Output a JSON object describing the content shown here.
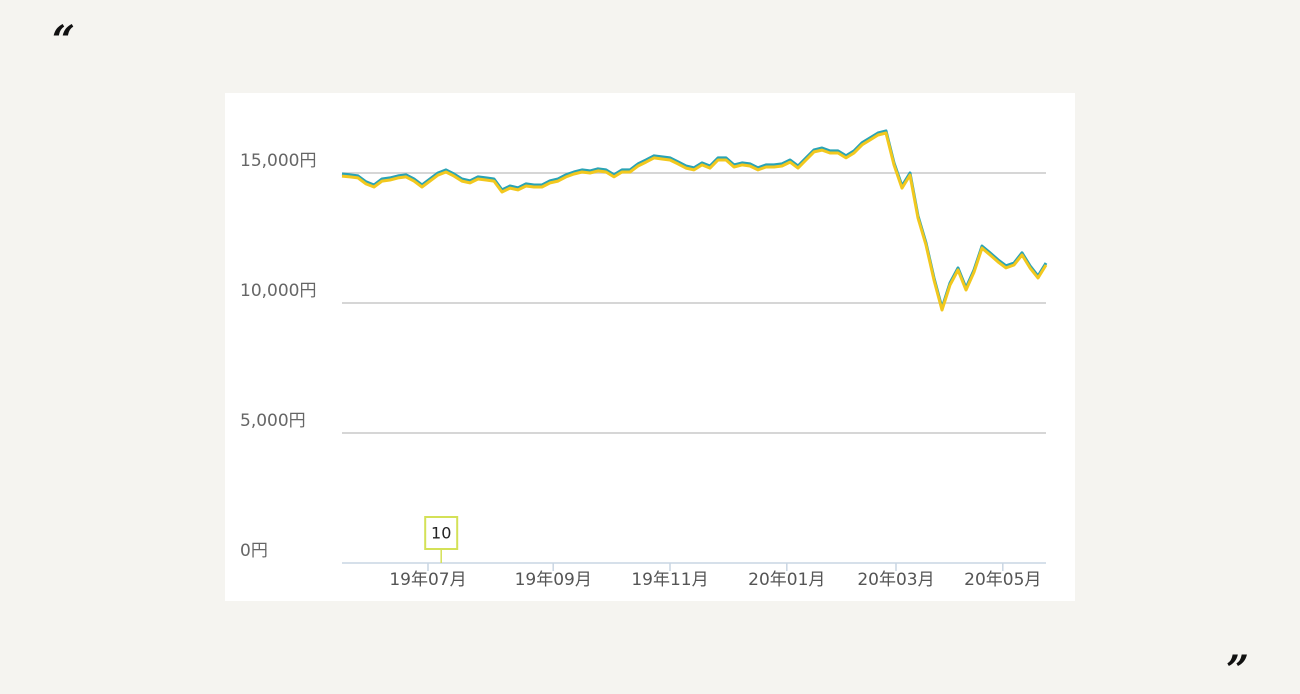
{
  "quote_open": "“",
  "quote_close": "”",
  "chart_data": {
    "type": "line",
    "ylim": [
      0,
      17000
    ],
    "yticks": [
      {
        "value": 0,
        "label": "0円"
      },
      {
        "value": 5000,
        "label": "5,000円"
      },
      {
        "value": 10000,
        "label": "10,000円"
      },
      {
        "value": 15000,
        "label": "15,000円"
      }
    ],
    "xlim": [
      0,
      88
    ],
    "xticks": [
      {
        "value": 10.75,
        "label": "19年07月"
      },
      {
        "value": 26.4,
        "label": "19年09月"
      },
      {
        "value": 41,
        "label": "19年11月"
      },
      {
        "value": 55.6,
        "label": "20年01月"
      },
      {
        "value": 69.25,
        "label": "20年03月"
      },
      {
        "value": 82.6,
        "label": "20年05月"
      }
    ],
    "grid": true,
    "annotations": [
      {
        "text": "10",
        "x": 12.4
      }
    ],
    "series": [
      {
        "color": "#2aa3b5",
        "values": [
          14960,
          14930,
          14890,
          14660,
          14540,
          14770,
          14810,
          14890,
          14930,
          14770,
          14540,
          14770,
          15000,
          15120,
          14960,
          14770,
          14700,
          14850,
          14810,
          14770,
          14350,
          14500,
          14430,
          14580,
          14540,
          14540,
          14700,
          14770,
          14930,
          15040,
          15120,
          15080,
          15160,
          15120,
          14930,
          15120,
          15120,
          15350,
          15500,
          15660,
          15620,
          15580,
          15430,
          15270,
          15200,
          15390,
          15270,
          15580,
          15580,
          15310,
          15390,
          15350,
          15200,
          15310,
          15310,
          15350,
          15500,
          15270,
          15580,
          15890,
          15960,
          15850,
          15850,
          15660,
          15850,
          16160,
          16350,
          16540,
          16620,
          15390,
          14500,
          15000,
          13350,
          12310,
          10960,
          9810,
          10770,
          11350,
          10580,
          11270,
          12190,
          11930,
          11660,
          11430,
          11540,
          11930,
          11430,
          11040,
          11540
        ]
      },
      {
        "color": "#f2c81e",
        "values": [
          14880,
          14850,
          14810,
          14580,
          14460,
          14690,
          14730,
          14810,
          14850,
          14690,
          14460,
          14690,
          14920,
          15040,
          14880,
          14690,
          14620,
          14770,
          14730,
          14690,
          14270,
          14420,
          14350,
          14500,
          14460,
          14460,
          14620,
          14690,
          14850,
          14960,
          15040,
          15000,
          15080,
          15040,
          14850,
          15040,
          15040,
          15270,
          15420,
          15580,
          15540,
          15500,
          15350,
          15190,
          15120,
          15310,
          15190,
          15500,
          15500,
          15230,
          15310,
          15270,
          15120,
          15230,
          15230,
          15270,
          15420,
          15190,
          15500,
          15810,
          15880,
          15770,
          15770,
          15580,
          15770,
          16080,
          16270,
          16460,
          16540,
          15310,
          14420,
          14920,
          13270,
          12230,
          10880,
          9730,
          10690,
          11270,
          10500,
          11190,
          12110,
          11850,
          11580,
          11350,
          11460,
          11850,
          11350,
          10960,
          11460
        ]
      }
    ]
  }
}
